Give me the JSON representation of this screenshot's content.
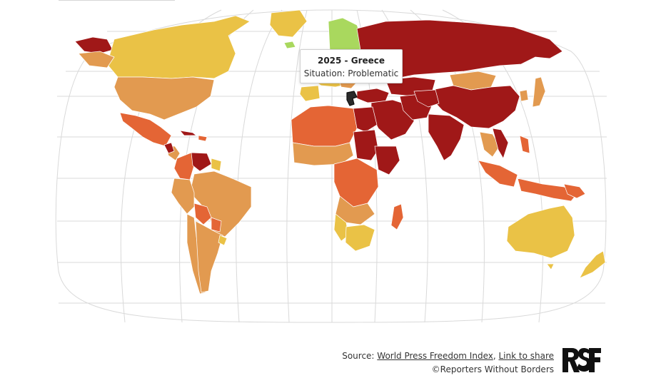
{
  "map": {
    "projection": "world map",
    "colors": {
      "good": "#a9d85e",
      "satisfactory": "#eac246",
      "problematic": "#e29a50",
      "difficult": "#e46535",
      "very_serious": "#a01818",
      "hovered_country": "#2a2a2a",
      "border": "#ffffff",
      "graticule": "#d9d9d9"
    },
    "hovered_country": "Greece"
  },
  "tooltip": {
    "year": "2025",
    "separator": " - ",
    "country": "Greece",
    "situation_label": "Situation: ",
    "situation_value": "Problematic"
  },
  "footer": {
    "source_prefix": "Source: ",
    "source_link": "World Press Freedom Index",
    "comma": ", ",
    "share_link": "Link to share",
    "copyright": "©Reporters Without Borders"
  },
  "logo": {
    "text": "RSF",
    "description": "Reporters Without Borders logo"
  }
}
